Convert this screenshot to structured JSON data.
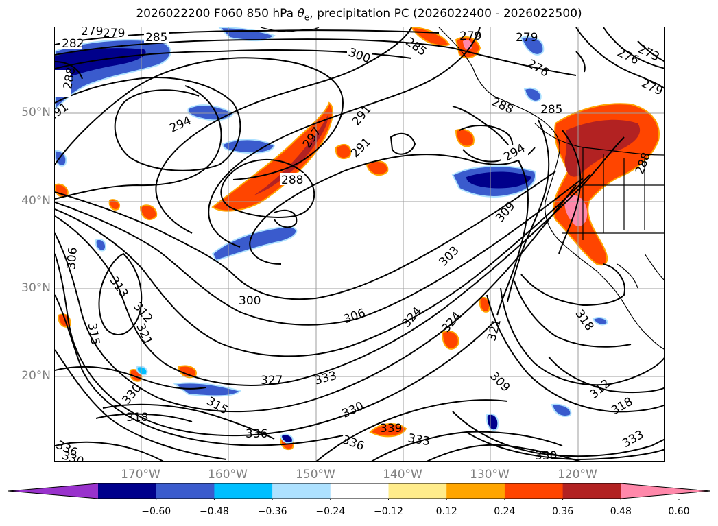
{
  "title": {
    "prefix": "2026022200 F060 850 hPa ",
    "theta": "θ",
    "sub": "e",
    "suffix": ", precipitation PC (2026022400 - 2026022500)"
  },
  "lat_labels": [
    "50°N",
    "40°N",
    "30°N",
    "20°N"
  ],
  "lon_labels": [
    "170°W",
    "160°W",
    "150°W",
    "140°W",
    "130°W",
    "120°W"
  ],
  "colorbar": {
    "ticks": [
      "−0.60",
      "−0.48",
      "−0.36",
      "−0.24",
      "−0.12",
      "0.12",
      "0.24",
      "0.36",
      "0.48",
      "0.60"
    ],
    "colors": [
      "#9932CC",
      "#00008B",
      "#3A5BCD",
      "#00BFFF",
      "#ADE1FF",
      "#FFFFFF",
      "#FFEC8B",
      "#FFA500",
      "#FF4500",
      "#B22222",
      "#FF88AA"
    ]
  },
  "contour_labels": [
    "279",
    "279",
    "282",
    "285",
    "300",
    "285",
    "279",
    "279",
    "276",
    "276",
    "273",
    "279",
    "288",
    "291",
    "294",
    "297",
    "291",
    "291",
    "288",
    "288",
    "285",
    "294",
    "288",
    "309",
    "303",
    "306",
    "313",
    "312",
    "321",
    "315",
    "300",
    "306",
    "324",
    "324",
    "321",
    "318",
    "309",
    "312",
    "318",
    "330",
    "318",
    "315",
    "327",
    "333",
    "330",
    "336",
    "336",
    "339",
    "333",
    "336",
    "330",
    "333",
    "330"
  ]
}
